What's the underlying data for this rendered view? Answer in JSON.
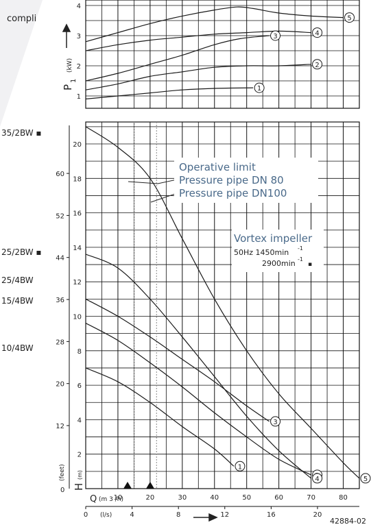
{
  "header_text": "compli",
  "model_labels": {
    "m35": "35/2BW ▪",
    "m25_2": "25/2BW ▪",
    "m25_4": "25/4BW",
    "m15": "15/4BW",
    "m10": "10/4BW"
  },
  "power_axis": {
    "symbol": "P",
    "subscript": "1",
    "unit": "(kW)",
    "ticks": [
      "1",
      "2",
      "3",
      "4"
    ]
  },
  "head_axis": {
    "symbol": "H",
    "unit": "(m)",
    "ticks": [
      "2",
      "4",
      "6",
      "8",
      "10",
      "12",
      "14",
      "16",
      "18",
      "20"
    ]
  },
  "feet_axis": {
    "unit": "(feet)",
    "ticks": [
      "0",
      "12",
      "20",
      "28",
      "36",
      "44",
      "52",
      "60"
    ]
  },
  "flow_m3h_axis": {
    "symbol": "Q",
    "unit": "(m 3 /h)",
    "ticks": [
      "10",
      "20",
      "30",
      "40",
      "50",
      "60",
      "70",
      "80"
    ]
  },
  "flow_ls_axis": {
    "unit": "(l/s)",
    "ticks": [
      "0",
      "4",
      "8",
      "12",
      "16",
      "20"
    ]
  },
  "legend_box": {
    "line1": "Operative limit",
    "line2": "Pressure pipe DN  80",
    "line3": "Pressure pipe DN100"
  },
  "impeller_box": {
    "title": "Vortex impeller",
    "speed1": "50Hz  1450min",
    "speed1_exp": "-1",
    "speed2": "2900min",
    "speed2_exp": "-1",
    "speed2_mark": "▪"
  },
  "figure_number": "42884-02",
  "colors": {
    "curve": "#1a1a1a",
    "grid": "#111111",
    "callout_text": "#4a6a8a",
    "dotted_line": "#888888"
  },
  "chart_data": [
    {
      "type": "line",
      "xlabel": "Q (m3/h)",
      "ylabel": "P1 (kW)",
      "xlim": [
        0,
        85
      ],
      "ylim": [
        0.6,
        4.4
      ],
      "series": [
        {
          "name": "1",
          "points": [
            [
              0,
              0.9
            ],
            [
              10,
              1.0
            ],
            [
              20,
              1.1
            ],
            [
              30,
              1.2
            ],
            [
              40,
              1.25
            ],
            [
              52,
              1.27
            ]
          ]
        },
        {
          "name": "2",
          "points": [
            [
              0,
              1.2
            ],
            [
              10,
              1.4
            ],
            [
              20,
              1.65
            ],
            [
              30,
              1.8
            ],
            [
              40,
              1.95
            ],
            [
              50,
              2.0
            ],
            [
              60,
              2.0
            ],
            [
              70,
              2.05
            ]
          ]
        },
        {
          "name": "3",
          "points": [
            [
              0,
              1.5
            ],
            [
              10,
              1.75
            ],
            [
              20,
              2.05
            ],
            [
              30,
              2.35
            ],
            [
              40,
              2.7
            ],
            [
              48,
              2.9
            ],
            [
              57,
              3.0
            ]
          ]
        },
        {
          "name": "4",
          "points": [
            [
              0,
              2.5
            ],
            [
              10,
              2.7
            ],
            [
              20,
              2.85
            ],
            [
              30,
              2.95
            ],
            [
              40,
              3.05
            ],
            [
              50,
              3.1
            ],
            [
              60,
              3.15
            ],
            [
              70,
              3.1
            ]
          ]
        },
        {
          "name": "5",
          "points": [
            [
              0,
              2.8
            ],
            [
              10,
              3.1
            ],
            [
              20,
              3.4
            ],
            [
              30,
              3.65
            ],
            [
              40,
              3.85
            ],
            [
              47,
              3.95
            ],
            [
              52,
              3.9
            ],
            [
              60,
              3.75
            ],
            [
              70,
              3.65
            ],
            [
              80,
              3.6
            ]
          ]
        }
      ]
    },
    {
      "type": "line",
      "xlabel": "Q (m3/h)",
      "ylabel": "H (m)",
      "xlim": [
        0,
        85
      ],
      "ylim": [
        0,
        22.5
      ],
      "series": [
        {
          "name": "1",
          "points": [
            [
              0,
              7.0
            ],
            [
              10,
              6.2
            ],
            [
              20,
              5.0
            ],
            [
              30,
              3.6
            ],
            [
              40,
              2.3
            ],
            [
              46,
              1.3
            ]
          ]
        },
        {
          "name": "2",
          "points": [
            [
              0,
              9.6
            ],
            [
              10,
              8.6
            ],
            [
              20,
              7.3
            ],
            [
              30,
              5.9
            ],
            [
              40,
              4.4
            ],
            [
              50,
              3.0
            ],
            [
              60,
              1.7
            ],
            [
              70,
              0.8
            ]
          ]
        },
        {
          "name": "3",
          "points": [
            [
              0,
              11.0
            ],
            [
              10,
              10.0
            ],
            [
              20,
              8.8
            ],
            [
              30,
              7.5
            ],
            [
              40,
              6.2
            ],
            [
              50,
              4.8
            ],
            [
              57,
              3.9
            ]
          ]
        },
        {
          "name": "4",
          "points": [
            [
              0,
              13.6
            ],
            [
              10,
              12.8
            ],
            [
              20,
              11.0
            ],
            [
              30,
              8.8
            ],
            [
              40,
              6.5
            ],
            [
              50,
              4.2
            ],
            [
              60,
              2.2
            ],
            [
              70,
              0.6
            ]
          ]
        },
        {
          "name": "5",
          "points": [
            [
              0,
              21.0
            ],
            [
              10,
              19.8
            ],
            [
              20,
              18.0
            ],
            [
              30,
              14.5
            ],
            [
              40,
              11.0
            ],
            [
              50,
              8.0
            ],
            [
              60,
              5.5
            ],
            [
              70,
              3.5
            ],
            [
              80,
              1.5
            ],
            [
              85,
              0.6
            ]
          ]
        }
      ],
      "markers": [
        {
          "label": "Operative limit DN 80",
          "q": 15
        },
        {
          "label": "Operative limit DN100",
          "q": 22
        }
      ]
    }
  ]
}
